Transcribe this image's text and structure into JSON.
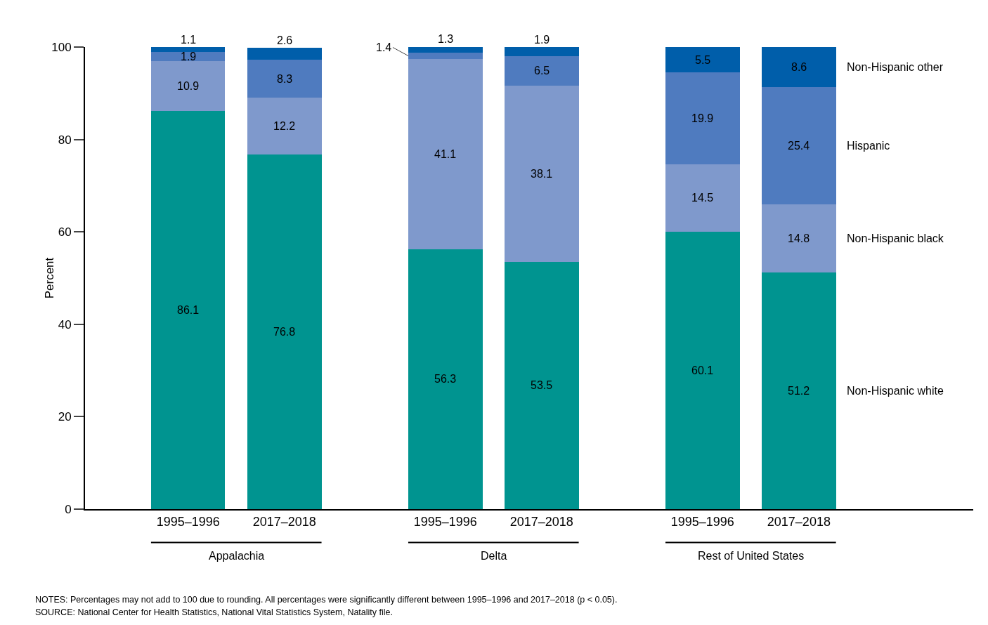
{
  "chart_data": {
    "type": "bar",
    "stacked": true,
    "ylabel": "Percent",
    "categories": [
      "1995–1996",
      "2017–2018",
      "1995–1996",
      "2017–2018",
      "1995–1996",
      "2017–2018"
    ],
    "series": [
      {
        "name": "Non-Hispanic white",
        "color": "#009490",
        "values": [
          86.1,
          76.8,
          56.3,
          53.5,
          60.1,
          51.2
        ]
      },
      {
        "name": "Non-Hispanic black",
        "color": "#7f99cc",
        "values": [
          10.9,
          12.2,
          41.1,
          38.1,
          14.5,
          14.8
        ]
      },
      {
        "name": "Hispanic",
        "color": "#4f7bbf",
        "values": [
          1.9,
          8.3,
          1.4,
          6.5,
          19.9,
          25.4
        ]
      },
      {
        "name": "Non-Hispanic other",
        "color": "#005eaa",
        "values": [
          1.1,
          2.6,
          1.3,
          1.9,
          5.5,
          8.6
        ]
      }
    ],
    "ylim": [
      0,
      100
    ],
    "yticks": [
      0,
      20,
      40,
      60,
      80,
      100
    ],
    "grid": false,
    "legend": "right",
    "data_labels": true,
    "annotations": [
      "Appalachia",
      "Delta",
      "Rest of United States",
      "NOTES: Percentages may not add to 100 due to rounding. All percentages were significantly different between 1995–1996 and 2017–2018 (p < 0.05).",
      "SOURCE: National Center for Health Statistics, National Vital Statistics System, Natality file."
    ]
  }
}
